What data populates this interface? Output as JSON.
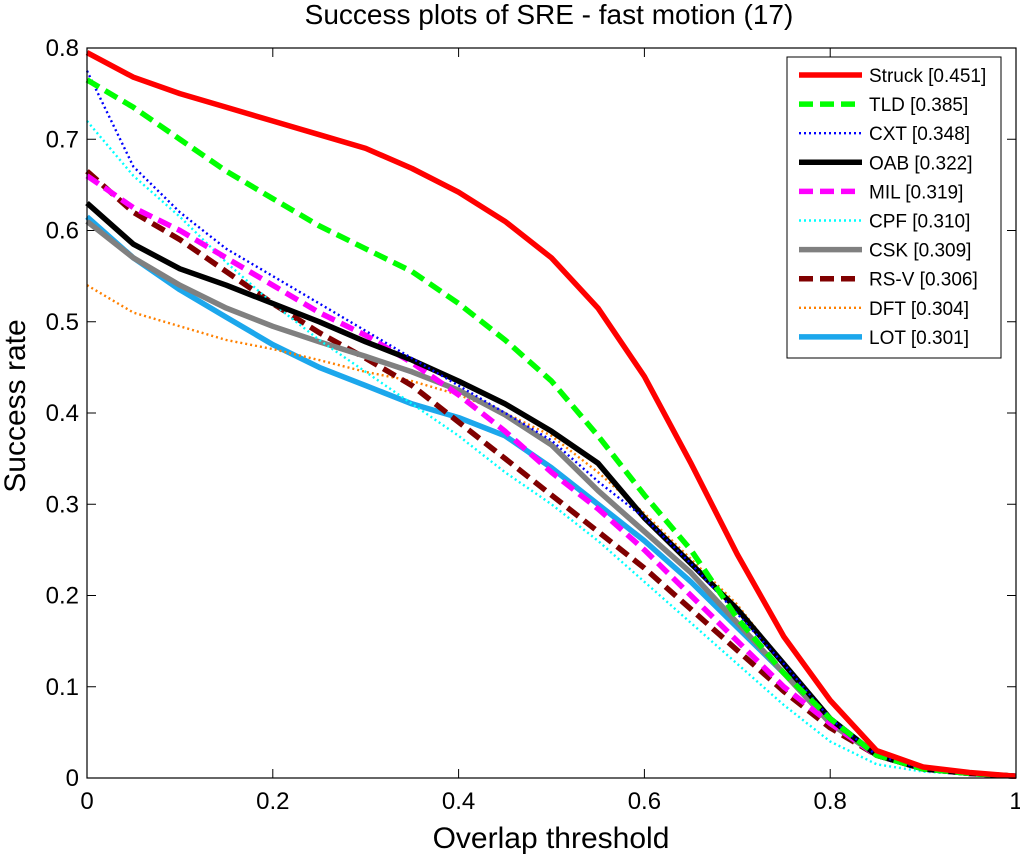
{
  "chart_data": {
    "type": "line",
    "title": "Success plots of SRE - fast motion (17)",
    "xlabel": "Overlap threshold",
    "ylabel": "Success rate",
    "xlim": [
      0,
      1
    ],
    "ylim": [
      0,
      0.8
    ],
    "xticks": [
      0,
      0.2,
      0.4,
      0.6,
      0.8,
      1
    ],
    "yticks": [
      0,
      0.1,
      0.2,
      0.3,
      0.4,
      0.5,
      0.6,
      0.7,
      0.8
    ],
    "xtick_labels": [
      "0",
      "0.2",
      "0.4",
      "0.6",
      "0.8",
      "1"
    ],
    "ytick_labels": [
      "0",
      "0.1",
      "0.2",
      "0.3",
      "0.4",
      "0.5",
      "0.6",
      "0.7",
      "0.8"
    ],
    "grid": false,
    "legend_position": "top-right",
    "x": [
      0,
      0.05,
      0.1,
      0.15,
      0.2,
      0.25,
      0.3,
      0.35,
      0.4,
      0.45,
      0.5,
      0.55,
      0.6,
      0.65,
      0.7,
      0.75,
      0.8,
      0.85,
      0.9,
      0.95,
      1.0
    ],
    "series": [
      {
        "name": "Struck [0.451]",
        "color": "#ff0000",
        "style": "solid",
        "values": [
          0.795,
          0.768,
          0.75,
          0.735,
          0.72,
          0.705,
          0.69,
          0.668,
          0.642,
          0.61,
          0.57,
          0.515,
          0.44,
          0.345,
          0.245,
          0.155,
          0.085,
          0.03,
          0.012,
          0.006,
          0.002
        ]
      },
      {
        "name": "TLD [0.385]",
        "color": "#00ff00",
        "style": "dash",
        "values": [
          0.765,
          0.735,
          0.7,
          0.665,
          0.635,
          0.605,
          0.58,
          0.555,
          0.52,
          0.48,
          0.435,
          0.375,
          0.31,
          0.25,
          0.175,
          0.115,
          0.065,
          0.025,
          0.01,
          0.005,
          0.002
        ]
      },
      {
        "name": "CXT [0.348]",
        "color": "#0000ff",
        "style": "dot",
        "values": [
          0.775,
          0.67,
          0.62,
          0.58,
          0.55,
          0.52,
          0.49,
          0.46,
          0.43,
          0.4,
          0.37,
          0.325,
          0.285,
          0.235,
          0.18,
          0.125,
          0.065,
          0.025,
          0.01,
          0.005,
          0.002
        ]
      },
      {
        "name": "OAB [0.322]",
        "color": "#000000",
        "style": "solid",
        "values": [
          0.63,
          0.585,
          0.558,
          0.54,
          0.52,
          0.5,
          0.478,
          0.458,
          0.435,
          0.41,
          0.38,
          0.345,
          0.285,
          0.235,
          0.185,
          0.125,
          0.065,
          0.025,
          0.01,
          0.005,
          0.002
        ]
      },
      {
        "name": "MIL [0.319]",
        "color": "#ff00ff",
        "style": "dash",
        "values": [
          0.66,
          0.625,
          0.6,
          0.57,
          0.54,
          0.51,
          0.485,
          0.455,
          0.42,
          0.38,
          0.335,
          0.295,
          0.25,
          0.2,
          0.15,
          0.1,
          0.06,
          0.025,
          0.01,
          0.005,
          0.002
        ]
      },
      {
        "name": "CPF [0.310]",
        "color": "#00ffff",
        "style": "dot",
        "values": [
          0.72,
          0.66,
          0.615,
          0.565,
          0.52,
          0.48,
          0.445,
          0.41,
          0.375,
          0.335,
          0.3,
          0.26,
          0.215,
          0.17,
          0.125,
          0.08,
          0.04,
          0.015,
          0.007,
          0.004,
          0.002
        ]
      },
      {
        "name": "CSK [0.309]",
        "color": "#808080",
        "style": "solid",
        "values": [
          0.61,
          0.57,
          0.54,
          0.515,
          0.495,
          0.478,
          0.462,
          0.445,
          0.425,
          0.398,
          0.365,
          0.315,
          0.27,
          0.225,
          0.17,
          0.115,
          0.06,
          0.025,
          0.01,
          0.005,
          0.002
        ]
      },
      {
        "name": "RS-V [0.306]",
        "color": "#800000",
        "style": "dash",
        "values": [
          0.665,
          0.62,
          0.59,
          0.555,
          0.52,
          0.488,
          0.46,
          0.43,
          0.39,
          0.35,
          0.31,
          0.27,
          0.23,
          0.185,
          0.14,
          0.095,
          0.055,
          0.025,
          0.01,
          0.005,
          0.002
        ]
      },
      {
        "name": "DFT [0.304]",
        "color": "#ff8000",
        "style": "dot",
        "values": [
          0.54,
          0.51,
          0.495,
          0.48,
          0.47,
          0.458,
          0.445,
          0.435,
          0.42,
          0.4,
          0.375,
          0.335,
          0.29,
          0.24,
          0.19,
          0.125,
          0.065,
          0.025,
          0.01,
          0.005,
          0.002
        ]
      },
      {
        "name": "LOT [0.301]",
        "color": "#1ca7ec",
        "style": "solid",
        "values": [
          0.615,
          0.57,
          0.535,
          0.505,
          0.475,
          0.45,
          0.43,
          0.41,
          0.395,
          0.375,
          0.34,
          0.3,
          0.26,
          0.215,
          0.165,
          0.115,
          0.065,
          0.025,
          0.01,
          0.005,
          0.002
        ]
      }
    ]
  }
}
